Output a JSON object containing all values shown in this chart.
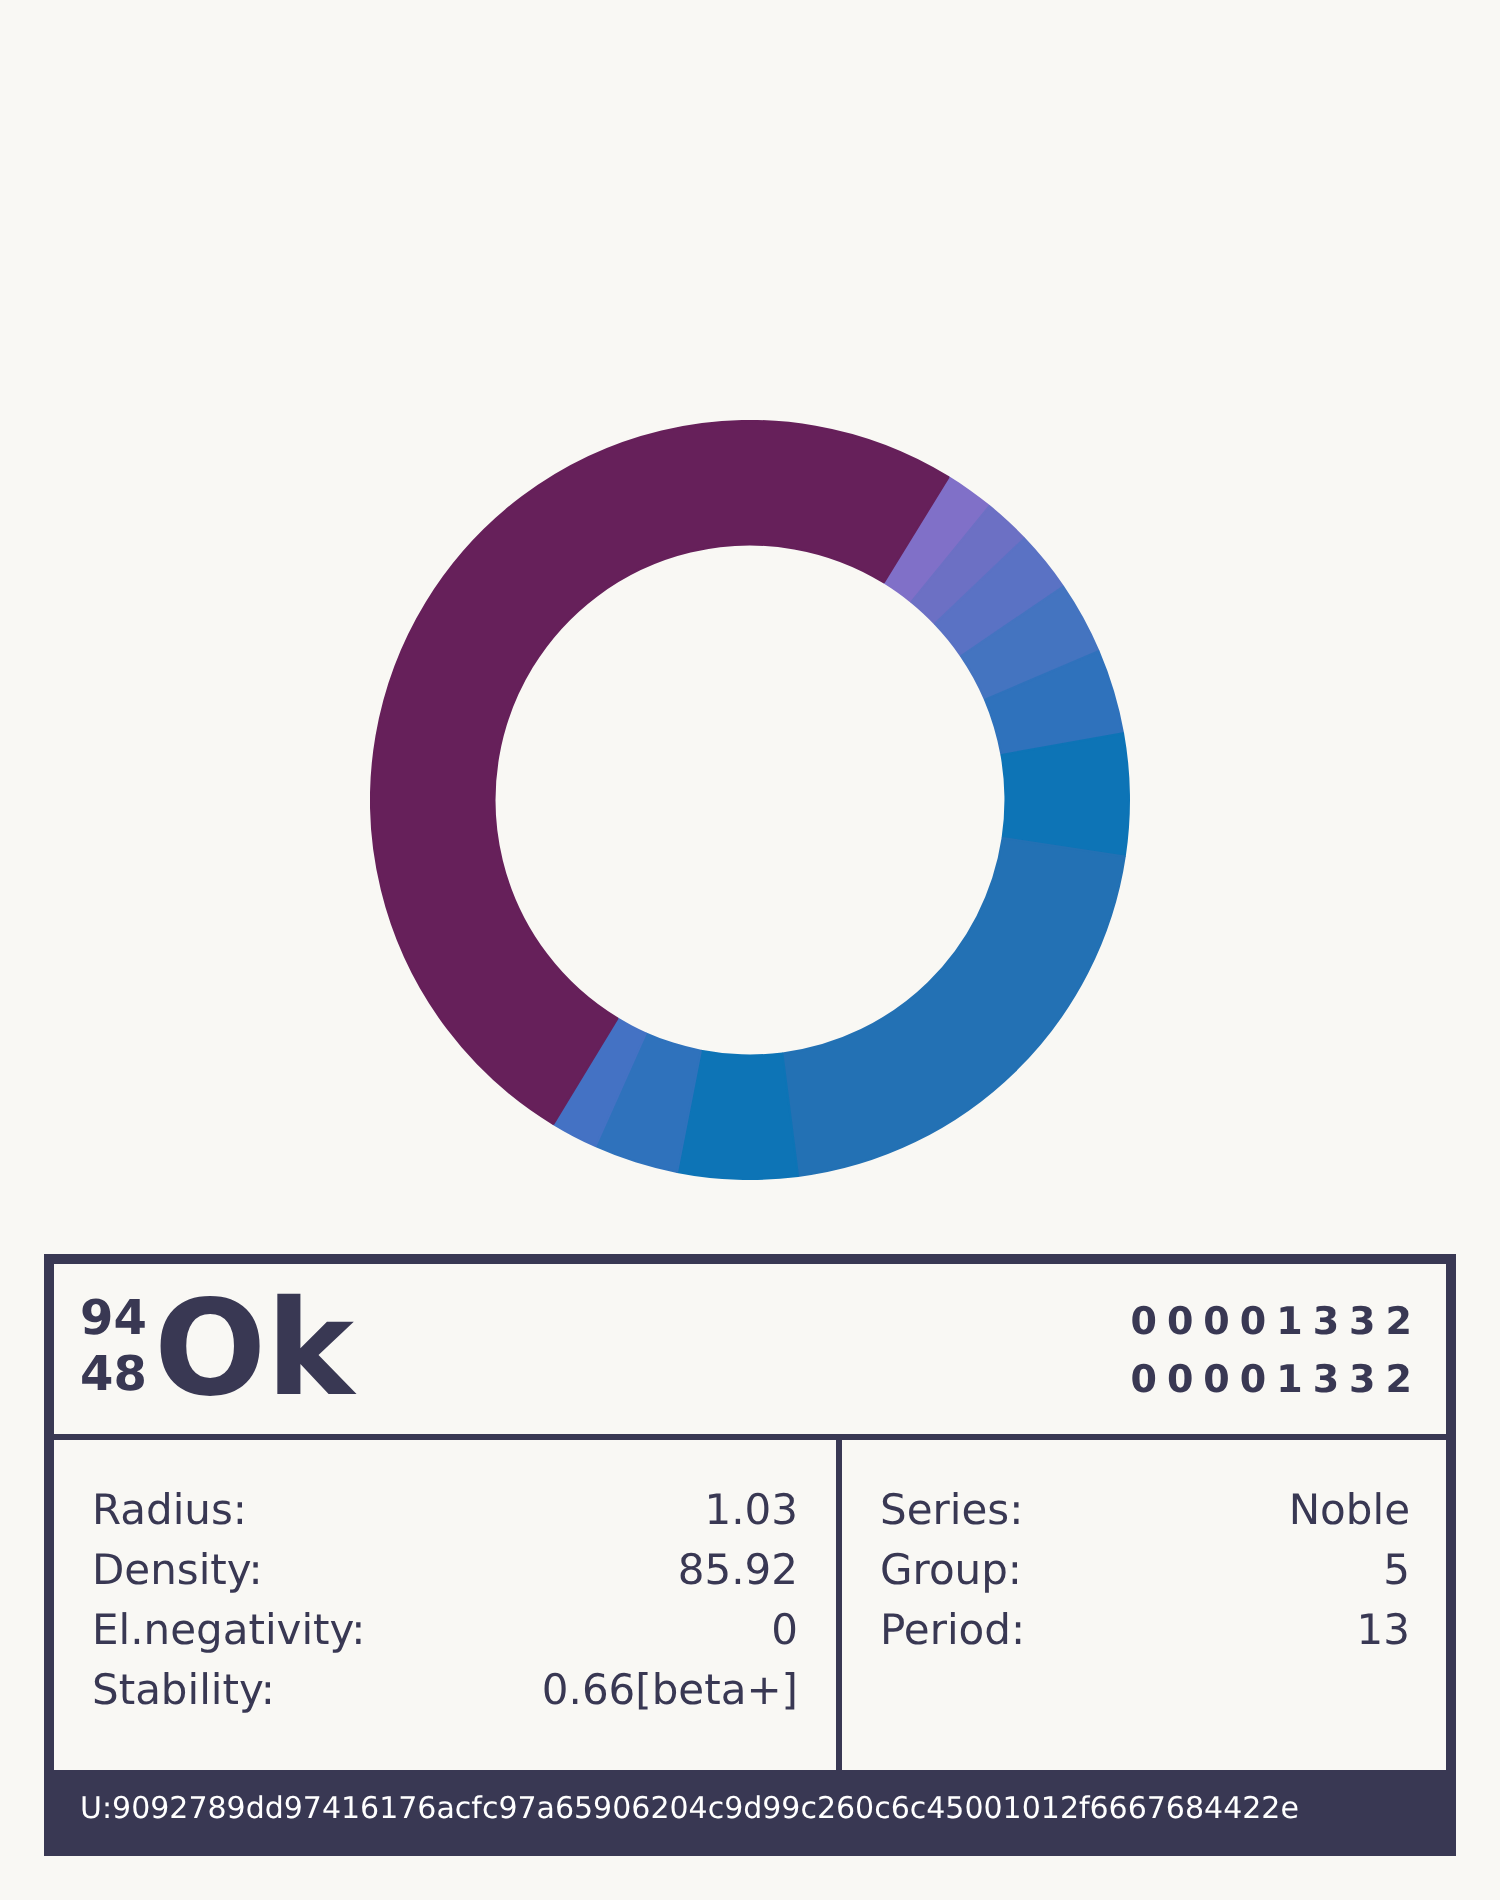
{
  "chart_data": [
    {
      "type": "donut",
      "categories": [
        null,
        null,
        null,
        null,
        null,
        null,
        null,
        null,
        null,
        null,
        null
      ],
      "values": [
        2.1,
        2.0,
        2.6,
        3.1,
        3.6,
        5.2,
        20.6,
        5.1,
        3.6,
        2.0,
        50.1
      ],
      "colors": [
        "#8070c8",
        "#6c70c4",
        "#5a72c4",
        "#4474c0",
        "#2f72bc",
        "#0d74b6",
        "#2371b4",
        "#0d74b6",
        "#2f72bc",
        "#4472c4",
        "#66205a"
      ]
    },
    {
      "type": "other",
      "title": "Ok",
      "annotations": [
        "94",
        "48",
        "00001332",
        "00001332",
        "Radius:",
        "1.03",
        "Density:",
        "85.92",
        "El.negativity:",
        "0",
        "Stability:",
        "0.66[beta+]",
        "Series:",
        "Noble",
        "Group:",
        "5",
        "Period:",
        "13",
        "U:9092789dd97416176acfc97a65906204c9d99c260c6c45001012f6667684422e"
      ]
    }
  ]
}
